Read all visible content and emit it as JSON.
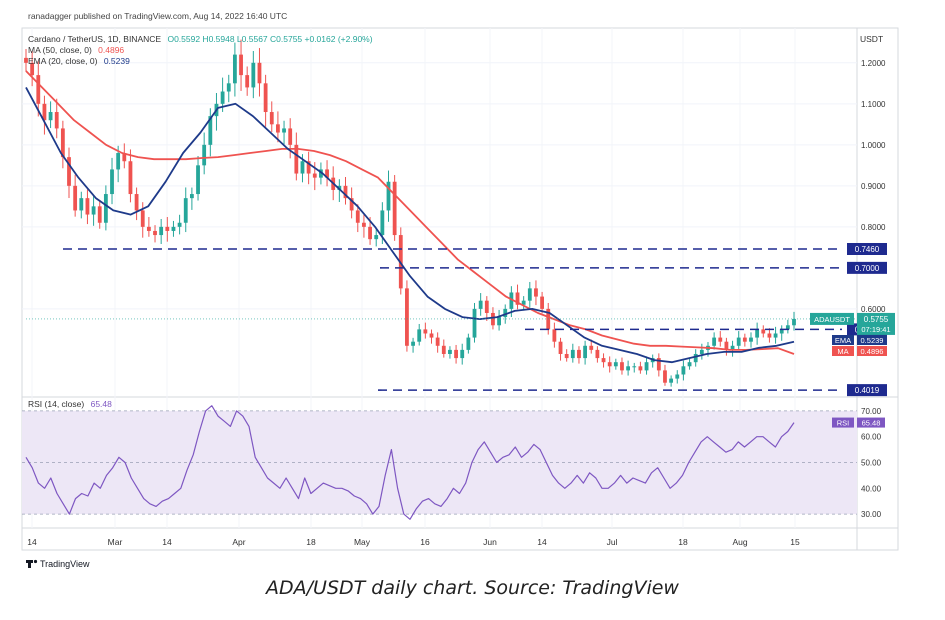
{
  "header": {
    "published": "ranadagger published on TradingView.com, Aug 14, 2022 16:40 UTC",
    "symbol": "Cardano / TetherUS, 1D, BINANCE",
    "ohlc": "O0.5592 H0.5948 L0.5567 C0.5755 +0.0162 (+2.90%)",
    "ma": "MA (50, close, 0)",
    "ma_value": "0.4896",
    "ema": "EMA (20, close, 0)",
    "ema_value": "0.5239",
    "rsi": "RSI (14, close)",
    "rsi_value": "65.48"
  },
  "colors": {
    "up": "#26a69a",
    "down": "#ef5350",
    "ma": "#ef5350",
    "ema": "#1e3a8a",
    "level": "#1e2a8f",
    "rsi": "#7e57c2",
    "rsi_band": "#ede7f6"
  },
  "footer": {
    "logo": "TradingView",
    "caption": "ADA/USDT daily chart. Source: TradingView"
  },
  "chart_data": {
    "type": "candlestick",
    "price_axis": {
      "label": "USDT",
      "range": [
        0.39,
        1.28
      ],
      "ticks": [
        "1.2000",
        "1.1000",
        "1.0000",
        "0.9000",
        "0.8000",
        "0.6000"
      ]
    },
    "x_ticks": [
      "14",
      "Mar",
      "14",
      "Apr",
      "18",
      "May",
      "16",
      "Jun",
      "14",
      "Jul",
      "18",
      "Aug",
      "15"
    ],
    "levels": [
      {
        "label": "0.7460",
        "value": 0.746
      },
      {
        "label": "0.7000",
        "value": 0.7
      },
      {
        "label": "0.5500",
        "value": 0.55
      },
      {
        "label": "0.4019",
        "value": 0.4019
      }
    ],
    "last_price": {
      "name": "ADAUSDT",
      "value": "0.5755",
      "countdown": "07:19:41"
    },
    "ema_tag": {
      "name": "EMA",
      "value": "0.5239"
    },
    "ma_tag": {
      "name": "MA",
      "value": "0.4896"
    },
    "close": [
      1.2,
      1.17,
      1.1,
      1.06,
      1.08,
      1.04,
      0.97,
      0.9,
      0.84,
      0.87,
      0.83,
      0.85,
      0.81,
      0.88,
      0.94,
      0.98,
      0.96,
      0.88,
      0.84,
      0.8,
      0.79,
      0.78,
      0.8,
      0.79,
      0.8,
      0.81,
      0.87,
      0.88,
      0.95,
      1.0,
      1.07,
      1.1,
      1.13,
      1.15,
      1.22,
      1.17,
      1.14,
      1.2,
      1.15,
      1.08,
      1.05,
      1.03,
      1.04,
      1.0,
      0.93,
      0.96,
      0.93,
      0.92,
      0.94,
      0.92,
      0.89,
      0.9,
      0.87,
      0.84,
      0.81,
      0.8,
      0.77,
      0.78,
      0.84,
      0.91,
      0.78,
      0.65,
      0.51,
      0.52,
      0.55,
      0.54,
      0.53,
      0.51,
      0.49,
      0.5,
      0.48,
      0.5,
      0.53,
      0.6,
      0.62,
      0.59,
      0.56,
      0.58,
      0.6,
      0.64,
      0.61,
      0.62,
      0.65,
      0.63,
      0.6,
      0.55,
      0.52,
      0.49,
      0.48,
      0.5,
      0.48,
      0.51,
      0.5,
      0.48,
      0.47,
      0.46,
      0.47,
      0.45,
      0.46,
      0.46,
      0.45,
      0.47,
      0.48,
      0.45,
      0.42,
      0.43,
      0.44,
      0.46,
      0.47,
      0.49,
      0.5,
      0.51,
      0.53,
      0.52,
      0.5,
      0.51,
      0.53,
      0.52,
      0.53,
      0.55,
      0.54,
      0.53,
      0.54,
      0.55,
      0.56,
      0.5755
    ],
    "ma50": [
      1.18,
      1.14,
      1.1,
      1.06,
      1.03,
      1.0,
      0.98,
      0.97,
      0.965,
      0.965,
      0.965,
      0.968,
      0.97,
      0.975,
      0.98,
      0.985,
      0.99,
      0.99,
      0.985,
      0.975,
      0.96,
      0.94,
      0.92,
      0.88,
      0.84,
      0.8,
      0.76,
      0.72,
      0.69,
      0.66,
      0.63,
      0.61,
      0.59,
      0.575,
      0.56,
      0.55,
      0.535,
      0.525,
      0.515,
      0.51,
      0.51,
      0.508,
      0.506,
      0.504,
      0.5,
      0.5,
      0.502,
      0.504,
      0.49
    ],
    "ema20": [
      1.14,
      1.06,
      0.98,
      0.92,
      0.87,
      0.84,
      0.83,
      0.85,
      0.91,
      0.98,
      1.03,
      1.09,
      1.1,
      1.07,
      1.03,
      0.99,
      0.96,
      0.93,
      0.89,
      0.85,
      0.8,
      0.74,
      0.68,
      0.63,
      0.6,
      0.58,
      0.575,
      0.58,
      0.595,
      0.6,
      0.59,
      0.56,
      0.53,
      0.51,
      0.5,
      0.49,
      0.475,
      0.47,
      0.48,
      0.49,
      0.495,
      0.495,
      0.505,
      0.51,
      0.52
    ],
    "rsi": {
      "range": [
        25,
        75
      ],
      "ticks": [
        "70.00",
        "60.00",
        "50.00",
        "40.00",
        "30.00"
      ],
      "band": [
        30,
        70
      ],
      "values": [
        52,
        48,
        42,
        40,
        44,
        38,
        34,
        30,
        36,
        38,
        37,
        42,
        40,
        45,
        48,
        52,
        50,
        44,
        40,
        36,
        34,
        33,
        35,
        36,
        38,
        40,
        47,
        53,
        62,
        70,
        72,
        68,
        66,
        64,
        70,
        68,
        64,
        52,
        48,
        44,
        42,
        40,
        44,
        40,
        36,
        44,
        38,
        40,
        42,
        41,
        40,
        40,
        39,
        37,
        36,
        34,
        30,
        33,
        45,
        55,
        40,
        30,
        28,
        32,
        35,
        36,
        34,
        33,
        36,
        40,
        38,
        42,
        50,
        55,
        58,
        54,
        50,
        52,
        53,
        56,
        52,
        54,
        57,
        55,
        50,
        45,
        42,
        40,
        42,
        45,
        42,
        46,
        44,
        40,
        40,
        42,
        45,
        42,
        44,
        43,
        42,
        46,
        48,
        44,
        40,
        42,
        45,
        50,
        54,
        58,
        60,
        58,
        56,
        54,
        55,
        58,
        56,
        58,
        60,
        60,
        58,
        56,
        60,
        62,
        65.48
      ]
    }
  }
}
